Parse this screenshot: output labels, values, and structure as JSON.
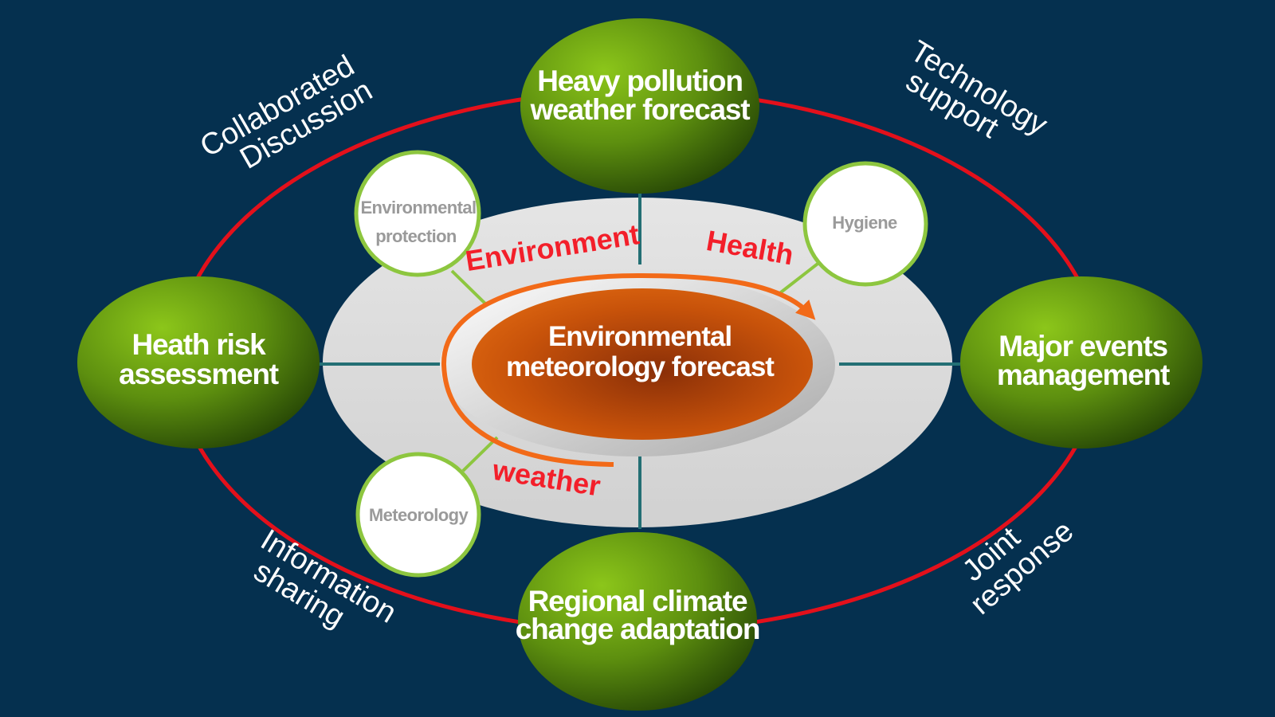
{
  "diagram": {
    "center": {
      "line1": "Environmental",
      "line2": "meteorology forecast"
    },
    "nodes": {
      "top": {
        "line1": "Heavy pollution",
        "line2": "weather forecast"
      },
      "left": {
        "line1": "Heath risk",
        "line2": "assessment"
      },
      "right": {
        "line1": "Major events",
        "line2": "management"
      },
      "bottom": {
        "line1": "Regional climate",
        "line2": "change adaptation"
      }
    },
    "small_nodes": {
      "environmental_protection": {
        "line1": "Environmental",
        "line2": "protection"
      },
      "hygiene": {
        "label": "Hygiene"
      },
      "meteorology": {
        "label": "Meteorology"
      }
    },
    "ring_labels": {
      "environment": "Environment",
      "health": "Health",
      "weather": "weather"
    },
    "corner_labels": {
      "top_left": {
        "line1": "Collaborated",
        "line2": "Discussion"
      },
      "top_right": {
        "line1": "Technology",
        "line2": "support"
      },
      "bottom_left": {
        "line1": "Information",
        "line2": "sharing"
      },
      "bottom_right": {
        "line1": "Joint",
        "line2": "response"
      }
    },
    "colors": {
      "background": "#05304f",
      "outer_ring": "#e3101b",
      "green_node": "#5f8f12",
      "center_node": "#c94d08",
      "arrow": "#f26a18",
      "label_red": "#f31f2a"
    }
  }
}
